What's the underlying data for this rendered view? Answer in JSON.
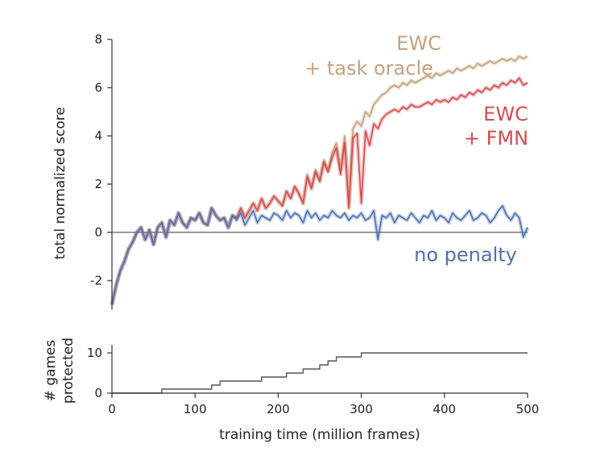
{
  "chart_data": [
    {
      "type": "line",
      "title": "",
      "xlabel": "",
      "ylabel": "total normalized score",
      "xlim": [
        0,
        500
      ],
      "ylim": [
        -3.2,
        8
      ],
      "yticks": [
        -2,
        0,
        2,
        4,
        6,
        8
      ],
      "ytick_labels": [
        "-2",
        "0",
        "2",
        "4",
        "6",
        "8"
      ],
      "zero_line": true,
      "annotations": [
        {
          "text": "EWC",
          "color": "#c6a07f"
        },
        {
          "text": "+ task oracle",
          "color": "#c6a07f"
        },
        {
          "text": "EWC",
          "color": "#d44e4e"
        },
        {
          "text": "+ FMN",
          "color": "#d44e4e"
        },
        {
          "text": "no penalty",
          "color": "#4c72b0"
        }
      ],
      "series": [
        {
          "color": "#4c72b0",
          "x": [
            0,
            5,
            10,
            15,
            20,
            25,
            30,
            35,
            40,
            45,
            50,
            55,
            60,
            65,
            70,
            75,
            80,
            85,
            90,
            95,
            100,
            105,
            110,
            115,
            120,
            125,
            130,
            135,
            140,
            145,
            150,
            155,
            160,
            165,
            170,
            175,
            180,
            185,
            190,
            195,
            200,
            205,
            210,
            215,
            220,
            225,
            230,
            235,
            240,
            245,
            250,
            255,
            260,
            265,
            270,
            275,
            280,
            285,
            290,
            295,
            300,
            305,
            310,
            315,
            320,
            325,
            330,
            335,
            340,
            345,
            350,
            355,
            360,
            365,
            370,
            375,
            380,
            385,
            390,
            395,
            400,
            405,
            410,
            415,
            420,
            425,
            430,
            435,
            440,
            445,
            450,
            455,
            460,
            465,
            470,
            475,
            480,
            485,
            490,
            495,
            500
          ],
          "y": [
            -3.0,
            -2.2,
            -1.6,
            -1.2,
            -0.7,
            -0.4,
            0.0,
            0.2,
            -0.3,
            0.1,
            -0.5,
            0.2,
            0.4,
            -0.2,
            0.5,
            0.3,
            0.8,
            0.4,
            0.2,
            0.6,
            0.5,
            0.8,
            0.4,
            0.3,
            1.0,
            0.7,
            0.5,
            0.6,
            0.2,
            0.7,
            0.5,
            0.8,
            0.3,
            0.6,
            0.9,
            0.4,
            0.7,
            0.6,
            0.5,
            0.8,
            0.7,
            0.5,
            0.9,
            0.6,
            0.8,
            0.7,
            0.4,
            0.9,
            0.6,
            0.8,
            0.5,
            0.7,
            0.6,
            0.9,
            0.7,
            0.6,
            0.8,
            0.5,
            0.7,
            0.6,
            0.8,
            0.5,
            0.6,
            0.9,
            -0.3,
            0.7,
            0.6,
            0.8,
            0.4,
            0.7,
            0.6,
            0.5,
            0.8,
            0.6,
            0.4,
            0.7,
            0.6,
            0.9,
            0.5,
            0.7,
            0.6,
            0.4,
            0.8,
            0.6,
            0.5,
            0.7,
            0.9,
            0.5,
            0.6,
            0.8,
            0.7,
            0.4,
            0.6,
            0.9,
            1.1,
            0.7,
            0.5,
            0.8,
            0.6,
            -0.2,
            0.2
          ]
        },
        {
          "color": "#d44e4e",
          "x": [
            0,
            5,
            10,
            15,
            20,
            25,
            30,
            35,
            40,
            45,
            50,
            55,
            60,
            65,
            70,
            75,
            80,
            85,
            90,
            95,
            100,
            105,
            110,
            115,
            120,
            125,
            130,
            135,
            140,
            145,
            150,
            155,
            160,
            165,
            170,
            175,
            180,
            185,
            190,
            195,
            200,
            205,
            210,
            215,
            220,
            225,
            230,
            235,
            240,
            245,
            250,
            255,
            260,
            265,
            270,
            275,
            280,
            285,
            290,
            295,
            300,
            305,
            310,
            315,
            320,
            325,
            330,
            335,
            340,
            345,
            350,
            355,
            360,
            365,
            370,
            375,
            380,
            385,
            390,
            395,
            400,
            405,
            410,
            415,
            420,
            425,
            430,
            435,
            440,
            445,
            450,
            455,
            460,
            465,
            470,
            475,
            480,
            485,
            490,
            495,
            500
          ],
          "y": [
            -3.0,
            -2.2,
            -1.6,
            -1.2,
            -0.7,
            -0.4,
            0.0,
            0.2,
            -0.3,
            0.1,
            -0.5,
            0.2,
            0.4,
            -0.2,
            0.5,
            0.3,
            0.8,
            0.4,
            0.2,
            0.6,
            0.5,
            0.8,
            0.4,
            0.3,
            1.0,
            0.7,
            0.5,
            0.6,
            0.2,
            0.7,
            0.6,
            1.0,
            0.6,
            0.9,
            1.2,
            0.9,
            1.4,
            1.0,
            1.2,
            1.5,
            1.3,
            1.1,
            1.7,
            1.4,
            1.9,
            1.6,
            1.2,
            2.3,
            1.8,
            2.5,
            2.1,
            2.9,
            2.5,
            3.1,
            3.5,
            2.4,
            3.7,
            1.0,
            3.9,
            4.1,
            1.2,
            4.2,
            3.6,
            4.5,
            4.3,
            4.7,
            4.9,
            5.0,
            5.1,
            5.0,
            5.2,
            5.1,
            5.3,
            5.2,
            5.2,
            5.3,
            5.4,
            5.3,
            5.5,
            5.4,
            5.5,
            5.4,
            5.6,
            5.5,
            5.7,
            5.6,
            5.8,
            5.7,
            5.9,
            5.8,
            6.0,
            5.9,
            6.1,
            6.0,
            6.2,
            6.1,
            6.3,
            6.2,
            6.4,
            6.1,
            6.2
          ]
        },
        {
          "color": "#c6a07f",
          "x": [
            0,
            5,
            10,
            15,
            20,
            25,
            30,
            35,
            40,
            45,
            50,
            55,
            60,
            65,
            70,
            75,
            80,
            85,
            90,
            95,
            100,
            105,
            110,
            115,
            120,
            125,
            130,
            135,
            140,
            145,
            150,
            155,
            160,
            165,
            170,
            175,
            180,
            185,
            190,
            195,
            200,
            205,
            210,
            215,
            220,
            225,
            230,
            235,
            240,
            245,
            250,
            255,
            260,
            265,
            270,
            275,
            280,
            285,
            290,
            295,
            300,
            305,
            310,
            315,
            320,
            325,
            330,
            335,
            340,
            345,
            350,
            355,
            360,
            365,
            370,
            375,
            380,
            385,
            390,
            395,
            400,
            405,
            410,
            415,
            420,
            425,
            430,
            435,
            440,
            445,
            450,
            455,
            460,
            465,
            470,
            475,
            480,
            485,
            490,
            495,
            500
          ],
          "y": [
            -3.0,
            -2.2,
            -1.6,
            -1.2,
            -0.7,
            -0.4,
            0.0,
            0.2,
            -0.3,
            0.1,
            -0.5,
            0.2,
            0.4,
            -0.2,
            0.5,
            0.3,
            0.8,
            0.4,
            0.2,
            0.6,
            0.5,
            0.8,
            0.4,
            0.3,
            1.0,
            0.7,
            0.5,
            0.6,
            0.2,
            0.7,
            0.6,
            1.0,
            0.6,
            0.9,
            1.2,
            0.9,
            1.4,
            1.0,
            1.2,
            1.5,
            1.3,
            1.1,
            1.7,
            1.4,
            1.9,
            1.6,
            1.2,
            2.4,
            1.9,
            2.6,
            2.2,
            3.0,
            2.6,
            3.3,
            3.7,
            2.6,
            4.0,
            1.2,
            4.3,
            4.6,
            4.4,
            5.0,
            4.8,
            5.3,
            5.5,
            5.7,
            5.8,
            6.0,
            6.1,
            6.0,
            6.2,
            6.1,
            6.3,
            6.2,
            6.3,
            6.4,
            6.5,
            6.4,
            6.6,
            6.5,
            6.6,
            6.7,
            6.6,
            6.8,
            6.7,
            6.8,
            6.9,
            6.8,
            7.0,
            6.9,
            7.0,
            7.1,
            7.0,
            7.1,
            7.2,
            7.1,
            7.2,
            7.1,
            7.3,
            7.2,
            7.3
          ]
        }
      ]
    },
    {
      "type": "line",
      "title": "",
      "xlabel": "training time (million frames)",
      "ylabel_lines": [
        "# games",
        "protected"
      ],
      "xlim": [
        0,
        500
      ],
      "ylim": [
        0,
        12
      ],
      "xticks": [
        0,
        100,
        200,
        300,
        400,
        500
      ],
      "xtick_labels": [
        "0",
        "100",
        "200",
        "300",
        "400",
        "500"
      ],
      "yticks": [
        0,
        10
      ],
      "ytick_labels": [
        "0",
        "10"
      ],
      "series": [
        {
          "color": "#555555",
          "x": [
            0,
            60,
            60,
            120,
            120,
            130,
            130,
            180,
            180,
            210,
            210,
            230,
            230,
            250,
            250,
            260,
            260,
            270,
            270,
            300,
            300,
            310,
            310,
            500
          ],
          "y": [
            0,
            0,
            1,
            1,
            2,
            2,
            3,
            3,
            4,
            4,
            5,
            5,
            6,
            6,
            7,
            7,
            8,
            8,
            9,
            9,
            10,
            10,
            10,
            10
          ]
        }
      ]
    }
  ]
}
